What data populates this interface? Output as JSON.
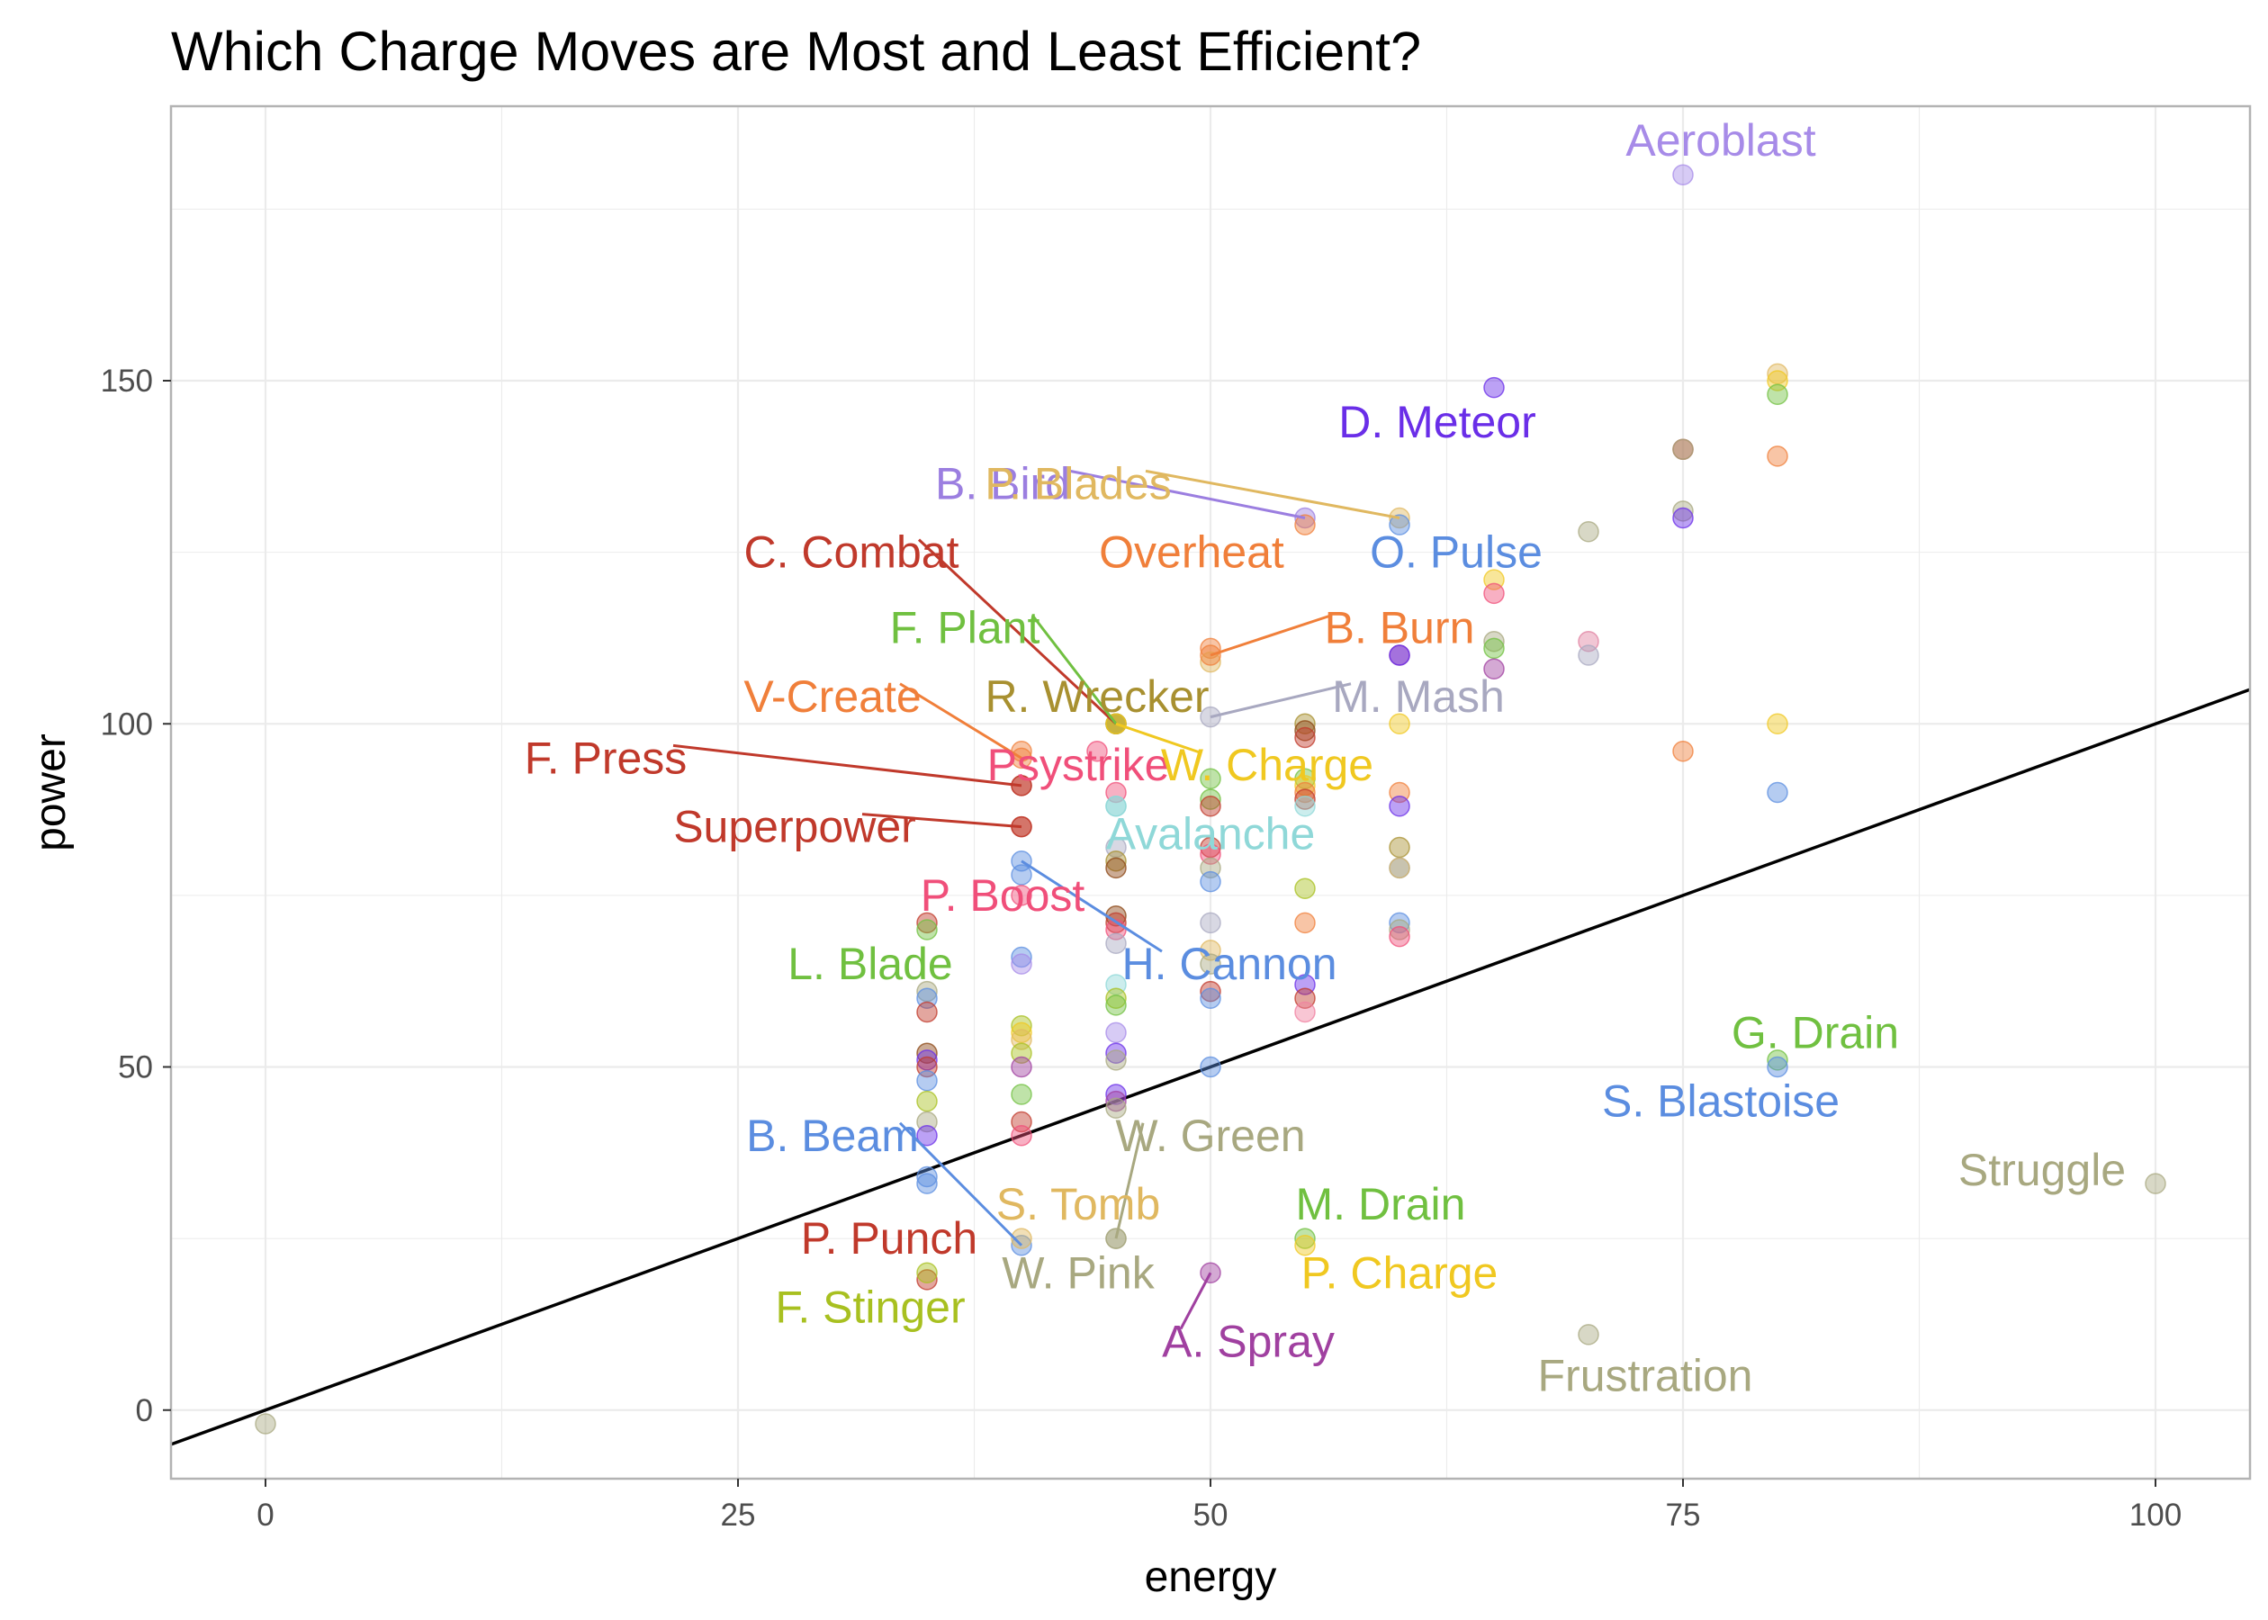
{
  "chart_data": {
    "type": "scatter",
    "title": "Which Charge Moves are Most and Least Efficient?",
    "xlabel": "energy",
    "ylabel": "power",
    "xlim": [
      -5,
      105
    ],
    "ylim": [
      -10,
      190
    ],
    "x_ticks": [
      0,
      25,
      50,
      75,
      100
    ],
    "y_ticks": [
      0,
      50,
      100,
      150
    ],
    "grid": true,
    "reference_line": {
      "slope": 1,
      "intercept": 0,
      "color": "#000000"
    },
    "labeled_points": [
      {
        "name": "Aeroblast",
        "x": 75,
        "y": 180,
        "color": "#a78be8",
        "lx": 77,
        "ly": 185
      },
      {
        "name": "D. Meteor",
        "x": 65,
        "y": 149,
        "color": "#6a2ee8",
        "lx": 62,
        "ly": 144
      },
      {
        "name": "B. Bird",
        "x": 55,
        "y": 130,
        "color": "#9b7ee0",
        "lx": 39,
        "ly": 135
      },
      {
        "name": "P. Blades",
        "x": 60,
        "y": 130,
        "color": "#e0b860",
        "lx": 43,
        "ly": 135
      },
      {
        "name": "O. Pulse",
        "x": 60,
        "y": 129,
        "color": "#5b8de0",
        "lx": 63,
        "ly": 125
      },
      {
        "name": "C. Combat",
        "x": 45,
        "y": 100,
        "color": "#c0392b",
        "lx": 31,
        "ly": 125
      },
      {
        "name": "Overheat",
        "x": 55,
        "y": 129,
        "color": "#f07f3a",
        "lx": 49,
        "ly": 125
      },
      {
        "name": "F. Plant",
        "x": 45,
        "y": 100,
        "color": "#70c040",
        "lx": 37,
        "ly": 114
      },
      {
        "name": "B. Burn",
        "x": 50,
        "y": 110,
        "color": "#f07f3a",
        "lx": 60,
        "ly": 114
      },
      {
        "name": "V-Create",
        "x": 40,
        "y": 95,
        "color": "#f07f3a",
        "lx": 30,
        "ly": 104
      },
      {
        "name": "R. Wrecker",
        "x": 45,
        "y": 100,
        "color": "#a89030",
        "lx": 44,
        "ly": 104
      },
      {
        "name": "M. Mash",
        "x": 50,
        "y": 101,
        "color": "#a8a8c0",
        "lx": 61,
        "ly": 104
      },
      {
        "name": "F. Press",
        "x": 40,
        "y": 91,
        "color": "#c0392b",
        "lx": 18,
        "ly": 95
      },
      {
        "name": "Psystrike",
        "x": 44,
        "y": 96,
        "color": "#f04f7a",
        "lx": 43,
        "ly": 94
      },
      {
        "name": "W. Charge",
        "x": 45,
        "y": 100,
        "color": "#f0c820",
        "lx": 53,
        "ly": 94
      },
      {
        "name": "Superpower",
        "x": 40,
        "y": 85,
        "color": "#c0392b",
        "lx": 28,
        "ly": 85
      },
      {
        "name": "Avalanche",
        "x": 45,
        "y": 88,
        "color": "#8fd8d8",
        "lx": 50,
        "ly": 84
      },
      {
        "name": "P. Boost",
        "x": 40,
        "y": 75,
        "color": "#f04f7a",
        "lx": 39,
        "ly": 75
      },
      {
        "name": "H. Cannon",
        "x": 40,
        "y": 80,
        "color": "#5b8de0",
        "lx": 51,
        "ly": 65
      },
      {
        "name": "L. Blade",
        "x": 35,
        "y": 70,
        "color": "#70c040",
        "lx": 32,
        "ly": 65
      },
      {
        "name": "G. Drain",
        "x": 80,
        "y": 51,
        "color": "#70c040",
        "lx": 82,
        "ly": 55
      },
      {
        "name": "S. Blastoise",
        "x": 80,
        "y": 50,
        "color": "#5b8de0",
        "lx": 77,
        "ly": 45
      },
      {
        "name": "B. Beam",
        "x": 40,
        "y": 24,
        "color": "#5b8de0",
        "lx": 30,
        "ly": 40
      },
      {
        "name": "W. Green",
        "x": 45,
        "y": 25,
        "color": "#a8a880",
        "lx": 50,
        "ly": 40
      },
      {
        "name": "Struggle",
        "x": 100,
        "y": 33,
        "color": "#a8a880",
        "lx": 94,
        "ly": 35
      },
      {
        "name": "S. Tomb",
        "x": 40,
        "y": 25,
        "color": "#e0b860",
        "lx": 43,
        "ly": 30
      },
      {
        "name": "M. Drain",
        "x": 55,
        "y": 25,
        "color": "#70c040",
        "lx": 59,
        "ly": 30
      },
      {
        "name": "P. Punch",
        "x": 35,
        "y": 19,
        "color": "#c0392b",
        "lx": 33,
        "ly": 25
      },
      {
        "name": "W. Pink",
        "x": 45,
        "y": 25,
        "color": "#a8a880",
        "lx": 43,
        "ly": 20
      },
      {
        "name": "P. Charge",
        "x": 55,
        "y": 24,
        "color": "#f0c820",
        "lx": 60,
        "ly": 20
      },
      {
        "name": "F. Stinger",
        "x": 35,
        "y": 20,
        "color": "#a8c020",
        "lx": 32,
        "ly": 15
      },
      {
        "name": "A. Spray",
        "x": 50,
        "y": 20,
        "color": "#a040a0",
        "lx": 52,
        "ly": 10
      },
      {
        "name": "Frustration",
        "x": 70,
        "y": 11,
        "color": "#a8a880",
        "lx": 73,
        "ly": 5
      }
    ],
    "leader_lines": [
      "B. Bird",
      "P. Blades",
      "C. Combat",
      "F. Plant",
      "B. Burn",
      "V-Create",
      "M. Mash",
      "F. Press",
      "W. Charge",
      "Superpower",
      "H. Cannon",
      "B. Beam",
      "W. Green",
      "A. Spray"
    ],
    "unlabeled_points": [
      {
        "x": 0,
        "y": -2,
        "color": "#a8a880"
      },
      {
        "x": 75,
        "y": 140,
        "color": "#c0392b"
      },
      {
        "x": 75,
        "y": 140,
        "color": "#a8a880"
      },
      {
        "x": 75,
        "y": 131,
        "color": "#a8a880"
      },
      {
        "x": 75,
        "y": 130,
        "color": "#6a2ee8"
      },
      {
        "x": 75,
        "y": 96,
        "color": "#f07f3a"
      },
      {
        "x": 80,
        "y": 151,
        "color": "#e0b860"
      },
      {
        "x": 80,
        "y": 150,
        "color": "#f0c820"
      },
      {
        "x": 80,
        "y": 148,
        "color": "#70c040"
      },
      {
        "x": 80,
        "y": 139,
        "color": "#f07f3a"
      },
      {
        "x": 80,
        "y": 100,
        "color": "#f0c820"
      },
      {
        "x": 80,
        "y": 90,
        "color": "#5b8de0"
      },
      {
        "x": 70,
        "y": 128,
        "color": "#a8a880"
      },
      {
        "x": 70,
        "y": 112,
        "color": "#e080a0"
      },
      {
        "x": 70,
        "y": 110,
        "color": "#a8a8c0"
      },
      {
        "x": 65,
        "y": 121,
        "color": "#f0c820"
      },
      {
        "x": 65,
        "y": 119,
        "color": "#f04f7a"
      },
      {
        "x": 65,
        "y": 112,
        "color": "#a8a880"
      },
      {
        "x": 65,
        "y": 111,
        "color": "#70c040"
      },
      {
        "x": 65,
        "y": 108,
        "color": "#a040a0"
      },
      {
        "x": 60,
        "y": 110,
        "color": "#a040a0"
      },
      {
        "x": 60,
        "y": 110,
        "color": "#6a2ee8"
      },
      {
        "x": 60,
        "y": 100,
        "color": "#f0c820"
      },
      {
        "x": 60,
        "y": 90,
        "color": "#f07f3a"
      },
      {
        "x": 60,
        "y": 88,
        "color": "#6a2ee8"
      },
      {
        "x": 60,
        "y": 82,
        "color": "#a89030"
      },
      {
        "x": 60,
        "y": 79,
        "color": "#5b8de0"
      },
      {
        "x": 60,
        "y": 79,
        "color": "#e0b860"
      },
      {
        "x": 60,
        "y": 71,
        "color": "#5b8de0"
      },
      {
        "x": 60,
        "y": 70,
        "color": "#a8a880"
      },
      {
        "x": 60,
        "y": 69,
        "color": "#f04f7a"
      },
      {
        "x": 55,
        "y": 100,
        "color": "#a89030"
      },
      {
        "x": 55,
        "y": 99,
        "color": "#8b4513"
      },
      {
        "x": 55,
        "y": 98,
        "color": "#c0392b"
      },
      {
        "x": 55,
        "y": 92,
        "color": "#70c040"
      },
      {
        "x": 55,
        "y": 91,
        "color": "#f0c820"
      },
      {
        "x": 55,
        "y": 90,
        "color": "#f07f3a"
      },
      {
        "x": 55,
        "y": 89,
        "color": "#c0392b"
      },
      {
        "x": 55,
        "y": 88,
        "color": "#8fd8d8"
      },
      {
        "x": 55,
        "y": 76,
        "color": "#a8c020"
      },
      {
        "x": 55,
        "y": 71,
        "color": "#f07f3a"
      },
      {
        "x": 55,
        "y": 62,
        "color": "#6a2ee8"
      },
      {
        "x": 55,
        "y": 60,
        "color": "#c0392b"
      },
      {
        "x": 55,
        "y": 58,
        "color": "#f080a0"
      },
      {
        "x": 50,
        "y": 111,
        "color": "#f07f3a"
      },
      {
        "x": 50,
        "y": 109,
        "color": "#e0b860"
      },
      {
        "x": 50,
        "y": 92,
        "color": "#70c040"
      },
      {
        "x": 50,
        "y": 89,
        "color": "#70c040"
      },
      {
        "x": 50,
        "y": 88,
        "color": "#c0392b"
      },
      {
        "x": 50,
        "y": 82,
        "color": "#c0392b"
      },
      {
        "x": 50,
        "y": 81,
        "color": "#f04f7a"
      },
      {
        "x": 50,
        "y": 79,
        "color": "#a8a880"
      },
      {
        "x": 50,
        "y": 77,
        "color": "#5b8de0"
      },
      {
        "x": 50,
        "y": 71,
        "color": "#a8a8c0"
      },
      {
        "x": 50,
        "y": 67,
        "color": "#e0b860"
      },
      {
        "x": 50,
        "y": 65,
        "color": "#a8a880"
      },
      {
        "x": 50,
        "y": 61,
        "color": "#c0392b"
      },
      {
        "x": 50,
        "y": 60,
        "color": "#5b8de0"
      },
      {
        "x": 50,
        "y": 50,
        "color": "#5b8de0"
      },
      {
        "x": 45,
        "y": 90,
        "color": "#f04f7a"
      },
      {
        "x": 45,
        "y": 88,
        "color": "#8fd8d8"
      },
      {
        "x": 45,
        "y": 82,
        "color": "#a8a8c0"
      },
      {
        "x": 45,
        "y": 80,
        "color": "#a89030"
      },
      {
        "x": 45,
        "y": 79,
        "color": "#8b4513"
      },
      {
        "x": 45,
        "y": 72,
        "color": "#8b4513"
      },
      {
        "x": 45,
        "y": 71,
        "color": "#c0392b"
      },
      {
        "x": 45,
        "y": 70,
        "color": "#f04f7a"
      },
      {
        "x": 45,
        "y": 68,
        "color": "#a8a8c0"
      },
      {
        "x": 45,
        "y": 62,
        "color": "#8fd8d8"
      },
      {
        "x": 45,
        "y": 60,
        "color": "#a8c020"
      },
      {
        "x": 45,
        "y": 59,
        "color": "#70c040"
      },
      {
        "x": 45,
        "y": 55,
        "color": "#a78be8"
      },
      {
        "x": 45,
        "y": 52,
        "color": "#6a2ee8"
      },
      {
        "x": 45,
        "y": 51,
        "color": "#a8a880"
      },
      {
        "x": 45,
        "y": 46,
        "color": "#6a2ee8"
      },
      {
        "x": 45,
        "y": 45,
        "color": "#a040a0"
      },
      {
        "x": 45,
        "y": 44,
        "color": "#a8a880"
      },
      {
        "x": 40,
        "y": 96,
        "color": "#f07f3a"
      },
      {
        "x": 40,
        "y": 91,
        "color": "#c0392b"
      },
      {
        "x": 40,
        "y": 85,
        "color": "#c0392b"
      },
      {
        "x": 40,
        "y": 78,
        "color": "#5b8de0"
      },
      {
        "x": 40,
        "y": 66,
        "color": "#5b8de0"
      },
      {
        "x": 40,
        "y": 65,
        "color": "#a78be8"
      },
      {
        "x": 40,
        "y": 56,
        "color": "#a8c020"
      },
      {
        "x": 40,
        "y": 55,
        "color": "#f0c820"
      },
      {
        "x": 40,
        "y": 54,
        "color": "#e0b860"
      },
      {
        "x": 40,
        "y": 52,
        "color": "#a8c020"
      },
      {
        "x": 40,
        "y": 50,
        "color": "#a040a0"
      },
      {
        "x": 40,
        "y": 46,
        "color": "#70c040"
      },
      {
        "x": 40,
        "y": 42,
        "color": "#c0392b"
      },
      {
        "x": 40,
        "y": 40,
        "color": "#f04f7a"
      },
      {
        "x": 35,
        "y": 71,
        "color": "#c0392b"
      },
      {
        "x": 35,
        "y": 61,
        "color": "#a8a880"
      },
      {
        "x": 35,
        "y": 60,
        "color": "#5b8de0"
      },
      {
        "x": 35,
        "y": 58,
        "color": "#c0392b"
      },
      {
        "x": 35,
        "y": 52,
        "color": "#8b4513"
      },
      {
        "x": 35,
        "y": 51,
        "color": "#6a2ee8"
      },
      {
        "x": 35,
        "y": 50,
        "color": "#c0392b"
      },
      {
        "x": 35,
        "y": 48,
        "color": "#5b8de0"
      },
      {
        "x": 35,
        "y": 45,
        "color": "#a8c020"
      },
      {
        "x": 35,
        "y": 42,
        "color": "#a8a880"
      },
      {
        "x": 35,
        "y": 40,
        "color": "#6a2ee8"
      },
      {
        "x": 35,
        "y": 34,
        "color": "#5b8de0"
      },
      {
        "x": 35,
        "y": 33,
        "color": "#5b8de0"
      }
    ]
  }
}
